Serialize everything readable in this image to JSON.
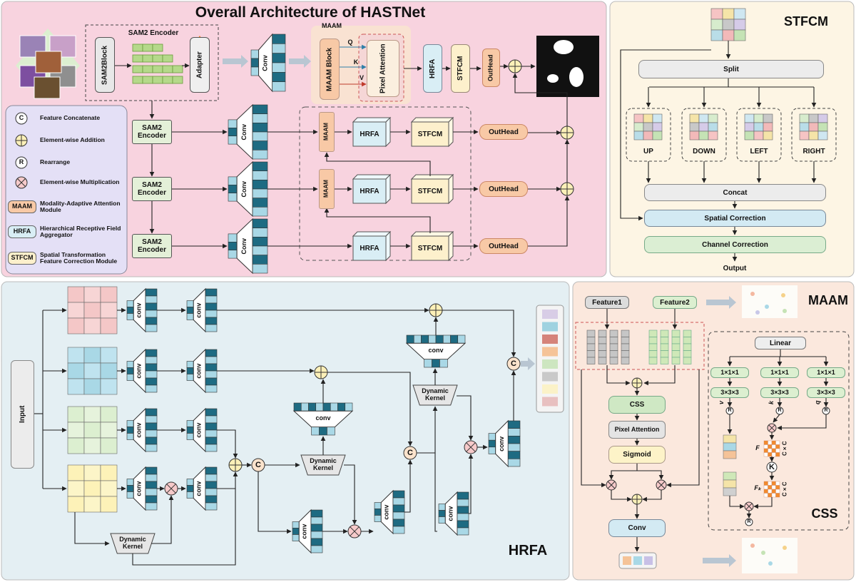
{
  "overall": {
    "title": "Overall Architecture of HASTNet",
    "sam2_encoder": "SAM2 Encoder",
    "sam2_block": "SAM2Block",
    "adapter": "Adapter",
    "conv": "Conv",
    "maam": "MAAM",
    "maam_block": "MAAM Block",
    "pixel_attention": "Pixel Attention",
    "q": "Q",
    "k": "K",
    "v": "V",
    "hrfa": "HRFA",
    "stfcm": "STFCM",
    "outhead": "OutHead"
  },
  "legend": [
    {
      "symbol": "C",
      "label": "Feature Concatenate"
    },
    {
      "label": "Element-wise Addition"
    },
    {
      "symbol": "R",
      "label": "Rearrange"
    },
    {
      "label": "Element-wise Multiplication"
    },
    {
      "symbol": "MAAM",
      "label": "Modality-Adaptive Attention Module"
    },
    {
      "symbol": "HRFA",
      "label": "Hierarchical Receptive Field Aggregator"
    },
    {
      "symbol": "STFCM",
      "label": "Spatial Transformation Feature Correction Module"
    }
  ],
  "stfcm": {
    "title": "STFCM",
    "split": "Split",
    "directions": [
      "UP",
      "DOWN",
      "LEFT",
      "RIGHT"
    ],
    "concat": "Concat",
    "spatial_correction": "Spatial Correction",
    "channel_correction": "Channel Correction",
    "output": "Output"
  },
  "hrfa": {
    "title": "HRFA",
    "input": "Input",
    "conv": "conv",
    "dynamic_kernel": "Dynamic Kernel",
    "concat": "C"
  },
  "maam": {
    "title": "MAAM",
    "feature1": "Feature1",
    "feature2": "Feature2",
    "css": "CSS",
    "pixel_attention": "Pixel Attention",
    "sigmoid": "Sigmoid",
    "conv": "Conv",
    "linear": "Linear",
    "conv1": "1×1×1",
    "conv3": "3×3×3",
    "rearrange": "R",
    "v": "v",
    "k": "k",
    "q": "q",
    "cxc": "C×C",
    "f": "F",
    "kernel": "K",
    "fk": "Fₖ",
    "css_title": "CSS"
  }
}
